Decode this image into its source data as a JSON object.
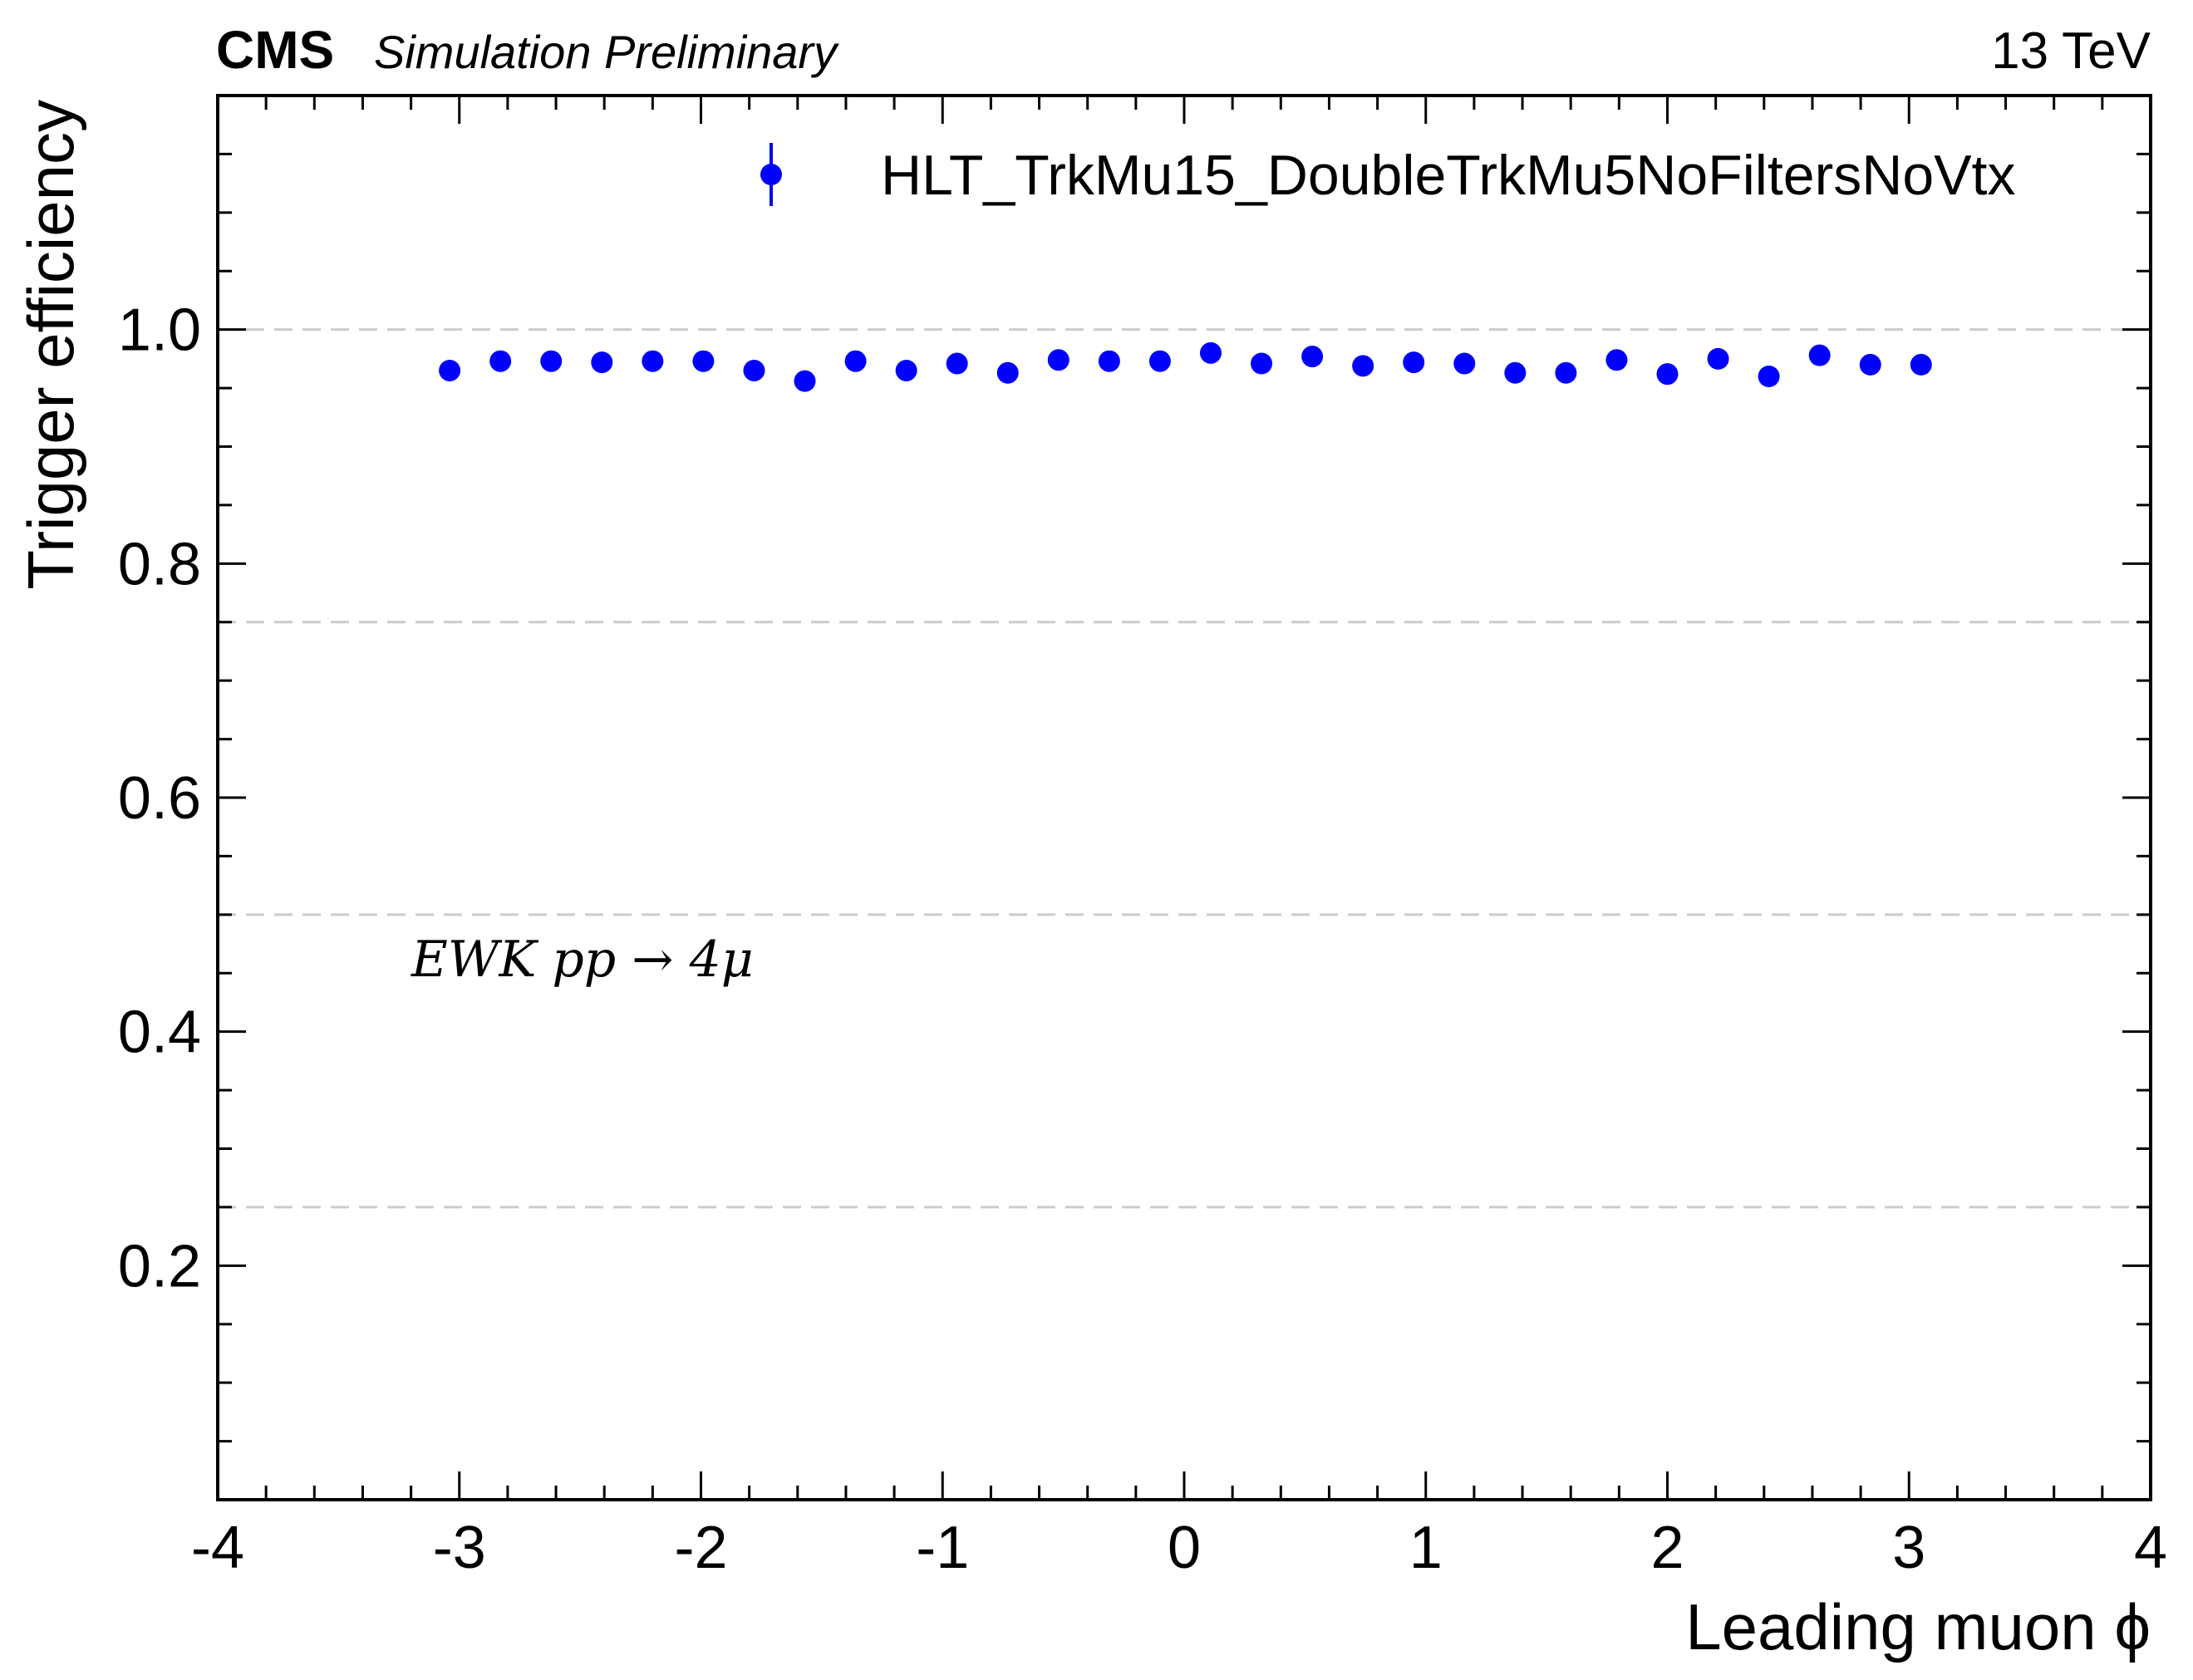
{
  "header": {
    "experiment": "CMS",
    "status": "Simulation Preliminary",
    "energy": "13 TeV"
  },
  "colors": {
    "marker": "#0000ff",
    "grid": "#cccccc",
    "axis": "#000000"
  },
  "chart_data": {
    "type": "scatter",
    "xlabel": "Leading muon ϕ",
    "ylabel": "Trigger efficiency",
    "xlim": [
      -4,
      4
    ],
    "ylim": [
      0.0,
      1.2
    ],
    "x_ticks": [
      -4,
      -3,
      -2,
      -1,
      0,
      1,
      2,
      3,
      4
    ],
    "x_tick_labels": [
      "-4",
      "-3",
      "-2",
      "-1",
      "0",
      "1",
      "2",
      "3",
      "4"
    ],
    "y_ticks": [
      0.2,
      0.4,
      0.6,
      0.8,
      1.0
    ],
    "y_tick_labels": [
      "0.2",
      "0.4",
      "0.6",
      "0.8",
      "1.0"
    ],
    "grid": "horizontal dashed at 0.25, 0.5, 0.75, 1.0",
    "grid_lines": [
      0.25,
      0.5,
      0.75,
      1.0
    ],
    "legend_position": "top-right",
    "annotation": "EWK pp → 4μ",
    "series": [
      {
        "name": "HLT_TrkMu15_DoubleTrkMu5NoFiltersNoVtx",
        "marker": "circle",
        "x": [
          -3.04,
          -2.83,
          -2.62,
          -2.41,
          -2.2,
          -1.99,
          -1.78,
          -1.57,
          -1.36,
          -1.15,
          -0.94,
          -0.73,
          -0.52,
          -0.31,
          -0.1,
          0.11,
          0.32,
          0.53,
          0.74,
          0.95,
          1.16,
          1.37,
          1.58,
          1.79,
          2.0,
          2.21,
          2.42,
          2.63,
          2.84,
          3.05
        ],
        "y": [
          0.965,
          0.973,
          0.973,
          0.972,
          0.973,
          0.973,
          0.965,
          0.956,
          0.973,
          0.965,
          0.971,
          0.963,
          0.974,
          0.973,
          0.973,
          0.98,
          0.971,
          0.977,
          0.969,
          0.972,
          0.971,
          0.963,
          0.963,
          0.974,
          0.962,
          0.975,
          0.96,
          0.978,
          0.97,
          0.97
        ]
      }
    ]
  }
}
